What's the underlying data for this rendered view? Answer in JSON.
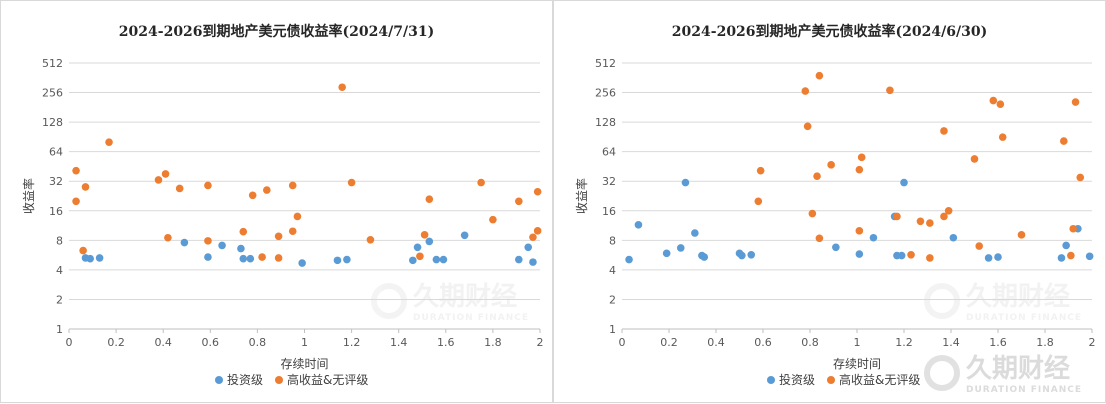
{
  "colors": {
    "investment_grade": "#5B9BD5",
    "high_yield": "#ED7D31",
    "gridline": "#d9d9d9",
    "axis": "#bfbfbf"
  },
  "watermark": {
    "brand": "久期财经",
    "sub": "DURATION FINANCE"
  },
  "chart_data": [
    {
      "type": "scatter",
      "title": "2024-2026到期地产美元债收益率(2024/7/31)",
      "xlabel": "存续时间",
      "ylabel": "收益率",
      "xlim": [
        0,
        2
      ],
      "ylim": [
        1,
        512
      ],
      "yscale": "log2",
      "xticks": [
        "0",
        "0.2",
        "0.4",
        "0.6",
        "0.8",
        "1",
        "1.2",
        "1.4",
        "1.6",
        "1.8",
        "2"
      ],
      "yticks": [
        "1",
        "2",
        "4",
        "8",
        "16",
        "32",
        "64",
        "128",
        "256",
        "512"
      ],
      "grid": "horizontal",
      "legend": "bottom",
      "series": [
        {
          "name": "投资级",
          "points": [
            [
              0.07,
              5.3
            ],
            [
              0.09,
              5.2
            ],
            [
              0.13,
              5.3
            ],
            [
              0.49,
              7.6
            ],
            [
              0.59,
              5.4
            ],
            [
              0.65,
              7.1
            ],
            [
              0.73,
              6.6
            ],
            [
              0.74,
              5.2
            ],
            [
              0.77,
              5.2
            ],
            [
              0.99,
              4.7
            ],
            [
              1.14,
              5.0
            ],
            [
              1.18,
              5.1
            ],
            [
              1.46,
              5.0
            ],
            [
              1.48,
              6.8
            ],
            [
              1.53,
              7.8
            ],
            [
              1.56,
              5.1
            ],
            [
              1.59,
              5.1
            ],
            [
              1.68,
              9.0
            ],
            [
              1.91,
              5.1
            ],
            [
              1.95,
              6.8
            ],
            [
              1.97,
              4.8
            ]
          ]
        },
        {
          "name": "高收益&无评级",
          "points": [
            [
              0.03,
              41
            ],
            [
              0.03,
              20
            ],
            [
              0.06,
              6.3
            ],
            [
              0.07,
              28
            ],
            [
              0.17,
              80
            ],
            [
              0.38,
              33
            ],
            [
              0.41,
              38
            ],
            [
              0.42,
              8.5
            ],
            [
              0.47,
              27
            ],
            [
              0.59,
              29
            ],
            [
              0.59,
              7.9
            ],
            [
              0.74,
              9.8
            ],
            [
              0.78,
              23
            ],
            [
              0.82,
              5.4
            ],
            [
              0.84,
              26
            ],
            [
              0.89,
              8.8
            ],
            [
              0.89,
              5.3
            ],
            [
              0.95,
              9.9
            ],
            [
              0.95,
              29
            ],
            [
              0.97,
              14
            ],
            [
              1.16,
              290
            ],
            [
              1.2,
              31
            ],
            [
              1.28,
              8.1
            ],
            [
              1.49,
              5.5
            ],
            [
              1.51,
              9.1
            ],
            [
              1.53,
              21
            ],
            [
              1.75,
              31
            ],
            [
              1.8,
              13
            ],
            [
              1.91,
              20
            ],
            [
              1.97,
              8.6
            ],
            [
              1.99,
              25
            ],
            [
              1.99,
              10
            ]
          ]
        }
      ]
    },
    {
      "type": "scatter",
      "title": "2024-2026到期地产美元债收益率(2024/6/30)",
      "xlabel": "存续时间",
      "ylabel": "收益率",
      "xlim": [
        0,
        2
      ],
      "ylim": [
        1,
        512
      ],
      "yscale": "log2",
      "xticks": [
        "0",
        "0.2",
        "0.4",
        "0.6",
        "0.8",
        "1",
        "1.2",
        "1.4",
        "1.6",
        "1.8",
        "2"
      ],
      "yticks": [
        "1",
        "2",
        "4",
        "8",
        "16",
        "32",
        "64",
        "128",
        "256",
        "512"
      ],
      "grid": "horizontal",
      "legend": "bottom",
      "series": [
        {
          "name": "投资级",
          "points": [
            [
              0.03,
              5.1
            ],
            [
              0.07,
              11.5
            ],
            [
              0.19,
              5.9
            ],
            [
              0.25,
              6.7
            ],
            [
              0.27,
              31
            ],
            [
              0.31,
              9.5
            ],
            [
              0.34,
              5.6
            ],
            [
              0.35,
              5.4
            ],
            [
              0.5,
              5.9
            ],
            [
              0.51,
              5.6
            ],
            [
              0.55,
              5.7
            ],
            [
              0.91,
              6.8
            ],
            [
              1.01,
              5.8
            ],
            [
              1.07,
              8.5
            ],
            [
              1.16,
              14
            ],
            [
              1.17,
              5.6
            ],
            [
              1.19,
              5.6
            ],
            [
              1.2,
              31
            ],
            [
              1.41,
              8.5
            ],
            [
              1.56,
              5.3
            ],
            [
              1.6,
              5.4
            ],
            [
              1.87,
              5.3
            ],
            [
              1.89,
              7.1
            ],
            [
              1.94,
              10.5
            ],
            [
              1.99,
              5.5
            ]
          ]
        },
        {
          "name": "高收益&无评级",
          "points": [
            [
              0.58,
              20
            ],
            [
              0.59,
              41
            ],
            [
              0.78,
              265
            ],
            [
              0.79,
              116
            ],
            [
              0.81,
              15
            ],
            [
              0.83,
              36
            ],
            [
              0.84,
              8.4
            ],
            [
              0.84,
              380
            ],
            [
              0.89,
              47
            ],
            [
              1.01,
              42
            ],
            [
              1.02,
              56
            ],
            [
              1.01,
              10
            ],
            [
              1.14,
              270
            ],
            [
              1.17,
              14
            ],
            [
              1.23,
              5.7
            ],
            [
              1.27,
              12.5
            ],
            [
              1.31,
              12
            ],
            [
              1.31,
              5.3
            ],
            [
              1.37,
              104
            ],
            [
              1.37,
              14
            ],
            [
              1.39,
              16
            ],
            [
              1.5,
              54
            ],
            [
              1.52,
              7
            ],
            [
              1.58,
              212
            ],
            [
              1.61,
              195
            ],
            [
              1.62,
              90
            ],
            [
              1.7,
              9.1
            ],
            [
              1.88,
              82
            ],
            [
              1.91,
              5.6
            ],
            [
              1.92,
              10.5
            ],
            [
              1.93,
              205
            ],
            [
              1.95,
              35
            ]
          ]
        }
      ]
    }
  ]
}
